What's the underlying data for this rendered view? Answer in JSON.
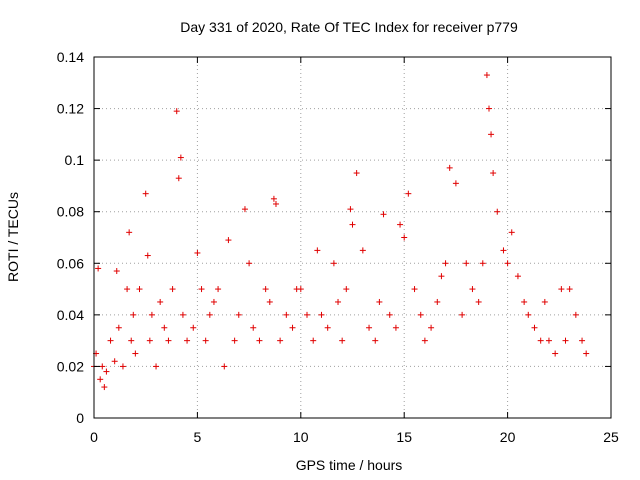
{
  "chart_data": {
    "type": "scatter",
    "title": "Day 331 of 2020, Rate Of TEC Index for receiver p779",
    "xlabel": "GPS time / hours",
    "ylabel": "ROTI / TECUs",
    "xlim": [
      0,
      25
    ],
    "ylim": [
      0,
      0.14
    ],
    "xticks": [
      "0",
      "5",
      "10",
      "15",
      "20",
      "25"
    ],
    "yticks": [
      "0",
      "0.02",
      "0.04",
      "0.06",
      "0.08",
      "0.1",
      "0.12",
      "0.14"
    ],
    "grid": true,
    "marker": "plus",
    "color": "#e00000",
    "series": [
      {
        "x": [
          0.0,
          0.1,
          0.2,
          0.3,
          0.4,
          0.5,
          0.6,
          0.8,
          1.0,
          1.1,
          1.2,
          1.4,
          1.6,
          1.7,
          1.8,
          1.9,
          2.0,
          2.2,
          2.5,
          2.6,
          2.7,
          2.8,
          3.0,
          3.2,
          3.4,
          3.6,
          3.8,
          4.0,
          4.1,
          4.2,
          4.3,
          4.5,
          4.8,
          5.0,
          5.2,
          5.4,
          5.6,
          5.8,
          6.0,
          6.3,
          6.5,
          6.8,
          7.0,
          7.3,
          7.5,
          7.7,
          8.0,
          8.3,
          8.5,
          8.7,
          8.8,
          9.0,
          9.3,
          9.6,
          9.8,
          10.0,
          10.3,
          10.6,
          10.8,
          11.0,
          11.3,
          11.6,
          11.8,
          12.0,
          12.2,
          12.4,
          12.5,
          12.7,
          13.0,
          13.3,
          13.6,
          13.8,
          14.0,
          14.3,
          14.6,
          14.8,
          15.0,
          15.2,
          15.5,
          15.8,
          16.0,
          16.3,
          16.6,
          16.8,
          17.0,
          17.2,
          17.5,
          17.8,
          18.0,
          18.3,
          18.6,
          18.8,
          19.0,
          19.1,
          19.2,
          19.3,
          19.5,
          19.8,
          20.0,
          20.2,
          20.5,
          20.8,
          21.0,
          21.3,
          21.6,
          21.8,
          22.0,
          22.3,
          22.6,
          22.8,
          23.0,
          23.3,
          23.6,
          23.8
        ],
        "y": [
          0.02,
          0.025,
          0.058,
          0.015,
          0.02,
          0.012,
          0.018,
          0.03,
          0.022,
          0.057,
          0.035,
          0.02,
          0.05,
          0.072,
          0.03,
          0.04,
          0.025,
          0.05,
          0.087,
          0.063,
          0.03,
          0.04,
          0.02,
          0.045,
          0.035,
          0.03,
          0.05,
          0.119,
          0.093,
          0.101,
          0.04,
          0.03,
          0.035,
          0.064,
          0.05,
          0.03,
          0.04,
          0.045,
          0.05,
          0.02,
          0.069,
          0.03,
          0.04,
          0.081,
          0.06,
          0.035,
          0.03,
          0.05,
          0.045,
          0.085,
          0.083,
          0.03,
          0.04,
          0.035,
          0.05,
          0.05,
          0.04,
          0.03,
          0.065,
          0.04,
          0.035,
          0.06,
          0.045,
          0.03,
          0.05,
          0.081,
          0.075,
          0.095,
          0.065,
          0.035,
          0.03,
          0.045,
          0.079,
          0.04,
          0.035,
          0.075,
          0.07,
          0.087,
          0.05,
          0.04,
          0.03,
          0.035,
          0.045,
          0.055,
          0.06,
          0.097,
          0.091,
          0.04,
          0.06,
          0.05,
          0.045,
          0.06,
          0.133,
          0.12,
          0.11,
          0.095,
          0.08,
          0.065,
          0.06,
          0.072,
          0.055,
          0.045,
          0.04,
          0.035,
          0.03,
          0.045,
          0.03,
          0.025,
          0.05,
          0.03,
          0.05,
          0.04,
          0.03,
          0.025
        ]
      }
    ]
  }
}
